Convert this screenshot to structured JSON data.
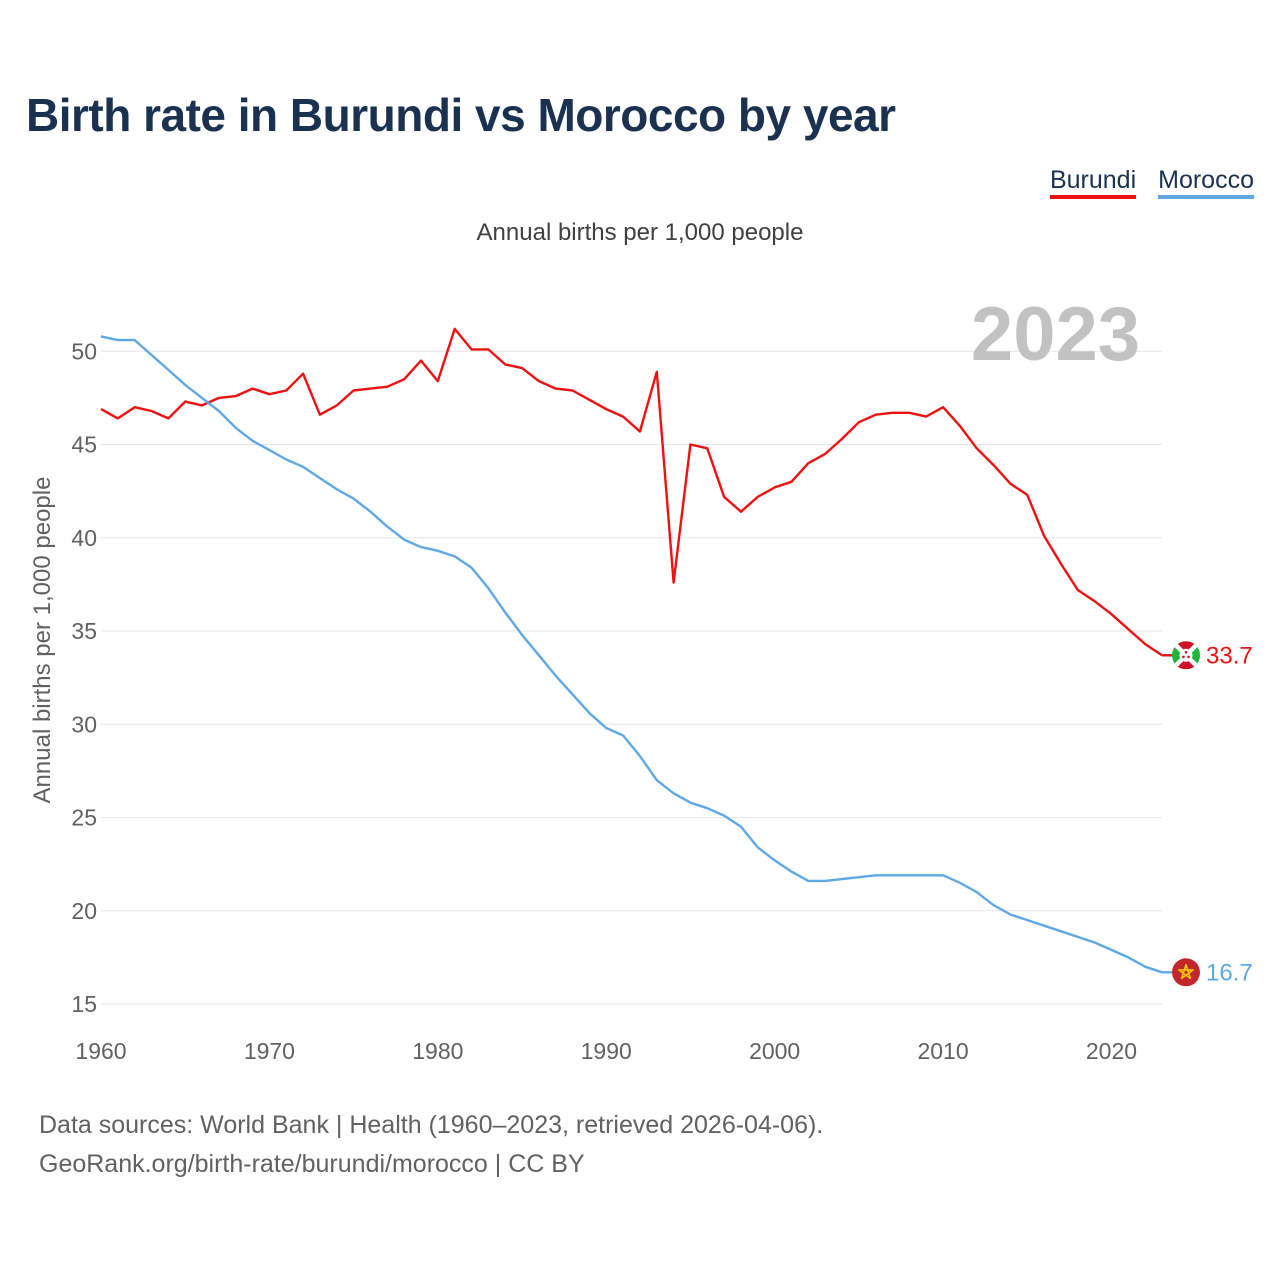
{
  "chart_data": {
    "type": "line",
    "title": "Birth rate in Burundi vs Morocco by year",
    "subtitle": "Annual births per 1,000 people",
    "xlabel": "",
    "ylabel": "Annual births per 1,000 people",
    "xlim": [
      1960,
      2023
    ],
    "ylim": [
      15,
      52
    ],
    "x_ticks": [
      1960,
      1970,
      1980,
      1990,
      2000,
      2010,
      2020
    ],
    "y_ticks": [
      15,
      20,
      25,
      30,
      35,
      40,
      45,
      50
    ],
    "grid": true,
    "year_watermark": "2023",
    "x": [
      1960,
      1961,
      1962,
      1963,
      1964,
      1965,
      1966,
      1967,
      1968,
      1969,
      1970,
      1971,
      1972,
      1973,
      1974,
      1975,
      1976,
      1977,
      1978,
      1979,
      1980,
      1981,
      1982,
      1983,
      1984,
      1985,
      1986,
      1987,
      1988,
      1989,
      1990,
      1991,
      1992,
      1993,
      1994,
      1995,
      1996,
      1997,
      1998,
      1999,
      2000,
      2001,
      2002,
      2003,
      2004,
      2005,
      2006,
      2007,
      2008,
      2009,
      2010,
      2011,
      2012,
      2013,
      2014,
      2015,
      2016,
      2017,
      2018,
      2019,
      2020,
      2021,
      2022,
      2023
    ],
    "series": [
      {
        "name": "Burundi",
        "color": "#ee1111",
        "end_label": "33.7",
        "flag": "burundi-flag-icon",
        "values": [
          46.9,
          46.4,
          47.0,
          46.8,
          46.4,
          47.3,
          47.1,
          47.5,
          47.6,
          48.0,
          47.7,
          47.9,
          48.8,
          46.6,
          47.1,
          47.9,
          48.0,
          48.1,
          48.5,
          49.5,
          48.4,
          51.2,
          50.1,
          50.1,
          49.3,
          49.1,
          48.4,
          48.0,
          47.9,
          47.4,
          46.9,
          46.5,
          45.7,
          48.9,
          37.6,
          45.0,
          44.8,
          42.2,
          41.4,
          42.2,
          42.7,
          43.0,
          44.0,
          44.5,
          45.3,
          46.2,
          46.6,
          46.7,
          46.7,
          46.5,
          47.0,
          46.0,
          44.8,
          43.9,
          42.9,
          42.3,
          40.1,
          38.6,
          37.2,
          36.6,
          35.9,
          35.1,
          34.3,
          33.7
        ]
      },
      {
        "name": "Morocco",
        "color": "#5fa8e6",
        "end_label": "16.7",
        "flag": "morocco-flag-icon",
        "values": [
          50.8,
          50.6,
          50.6,
          49.8,
          49.0,
          48.2,
          47.5,
          46.8,
          45.9,
          45.2,
          44.7,
          44.2,
          43.8,
          43.2,
          42.6,
          42.1,
          41.4,
          40.6,
          39.9,
          39.5,
          39.3,
          39.0,
          38.4,
          37.3,
          36.0,
          34.8,
          33.7,
          32.6,
          31.6,
          30.6,
          29.8,
          29.4,
          28.3,
          27.0,
          26.3,
          25.8,
          25.5,
          25.1,
          24.5,
          23.4,
          22.7,
          22.1,
          21.6,
          21.6,
          21.7,
          21.8,
          21.9,
          21.9,
          21.9,
          21.9,
          21.9,
          21.5,
          21.0,
          20.3,
          19.8,
          19.5,
          19.2,
          18.9,
          18.6,
          18.3,
          17.9,
          17.5,
          17.0,
          16.7
        ]
      }
    ]
  },
  "legend": {
    "burundi": "Burundi",
    "morocco": "Morocco"
  },
  "source": {
    "line1": "Data sources: World Bank | Health (1960–2023, retrieved 2026-04-06).",
    "line2": "GeoRank.org/birth-rate/burundi/morocco | CC BY"
  }
}
